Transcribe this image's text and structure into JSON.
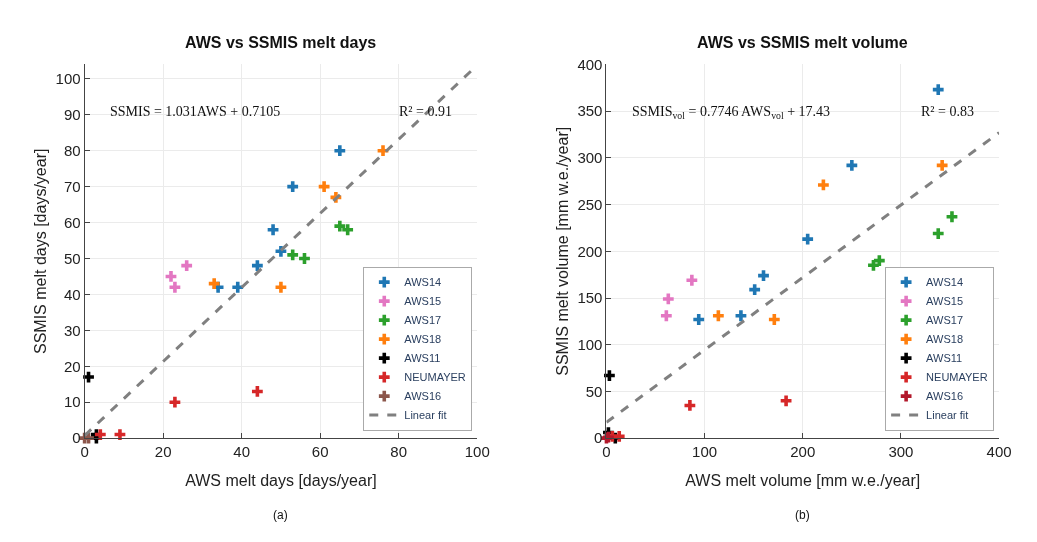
{
  "chart_data": [
    {
      "type": "scatter",
      "title": "AWS vs SSMIS melt days",
      "xlabel": "AWS melt days [days/year]",
      "ylabel": "SSMIS melt days [days/year]",
      "xlim": [
        0,
        100
      ],
      "ylim": [
        0,
        104
      ],
      "xticks": [
        0,
        20,
        40,
        60,
        80,
        100
      ],
      "yticks": [
        0,
        10,
        20,
        30,
        40,
        50,
        60,
        70,
        80,
        90,
        100
      ],
      "grid": true,
      "legend": "bottom right",
      "marker": "cross",
      "annotations": [
        "SSMIS = 1.031AWS + 0.7105",
        "R² = 0.91",
        "(a)"
      ],
      "series": [
        {
          "name": "AWS14",
          "color": "#1f77b4",
          "x": [
            34,
            39,
            44,
            48,
            50,
            53,
            65
          ],
          "values": [
            42,
            42,
            48,
            58,
            52,
            70,
            80
          ]
        },
        {
          "name": "AWS15",
          "color": "#e377c2",
          "x": [
            22,
            23,
            26
          ],
          "values": [
            45,
            42,
            48
          ]
        },
        {
          "name": "AWS17",
          "color": "#2ca02c",
          "x": [
            53,
            56,
            65,
            67
          ],
          "values": [
            51,
            50,
            59,
            58
          ]
        },
        {
          "name": "AWS18",
          "color": "#ff7f0e",
          "x": [
            33,
            50,
            61,
            64,
            76
          ],
          "values": [
            43,
            42,
            70,
            67,
            80
          ]
        },
        {
          "name": "AWS11",
          "color": "#000000",
          "x": [
            1,
            3,
            3
          ],
          "values": [
            17,
            1,
            0
          ]
        },
        {
          "name": "NEUMAYER",
          "color": "#d62728",
          "x": [
            4,
            9,
            23,
            44
          ],
          "values": [
            1,
            1,
            10,
            13
          ]
        },
        {
          "name": "AWS16",
          "color": "#8c564b",
          "x": [
            0,
            1
          ],
          "values": [
            0,
            0
          ]
        },
        {
          "name": "Linear fit",
          "type": "line",
          "color": "#808080",
          "line_style": "dashed",
          "marker": "none",
          "x": [
            0,
            100
          ],
          "values": [
            0.7,
            103.8
          ]
        }
      ]
    },
    {
      "type": "scatter",
      "title": "AWS vs SSMIS melt volume",
      "xlabel": "AWS melt volume [mm w.e./year]",
      "ylabel": "SSMIS melt volume [mm w.e./year]",
      "xlim": [
        0,
        400
      ],
      "ylim": [
        0,
        400
      ],
      "xticks": [
        0,
        100,
        200,
        300,
        400
      ],
      "yticks": [
        0,
        50,
        100,
        150,
        200,
        250,
        300,
        350,
        400
      ],
      "grid": true,
      "legend": "bottom right",
      "marker": "cross",
      "annotations": [
        "SSMIS$_{vol}$ = 0.7746 AWS$_{vol}$ + 17.43",
        "R² = 0.83",
        "(b)"
      ],
      "series": [
        {
          "name": "AWS14",
          "color": "#1f77b4",
          "x": [
            94,
            137,
            151,
            160,
            205,
            250,
            338
          ],
          "values": [
            127,
            131,
            159,
            174,
            213,
            292,
            373
          ]
        },
        {
          "name": "AWS15",
          "color": "#e377c2",
          "x": [
            61,
            63,
            87
          ],
          "values": [
            131,
            149,
            169
          ]
        },
        {
          "name": "AWS17",
          "color": "#2ca02c",
          "x": [
            272,
            278,
            338,
            352
          ],
          "values": [
            185,
            190,
            219,
            237
          ]
        },
        {
          "name": "AWS18",
          "color": "#ff7f0e",
          "x": [
            114,
            171,
            221,
            342
          ],
          "values": [
            131,
            127,
            271,
            292
          ]
        },
        {
          "name": "AWS11",
          "color": "#000000",
          "x": [
            3,
            2,
            9
          ],
          "values": [
            67,
            6,
            0
          ]
        },
        {
          "name": "NEUMAYER",
          "color": "#d62728",
          "x": [
            85,
            183,
            13,
            6
          ],
          "values": [
            35,
            40,
            2,
            2
          ]
        },
        {
          "name": "AWS16",
          "color": "#b2182b",
          "x": [
            0,
            2
          ],
          "values": [
            0,
            1
          ]
        },
        {
          "name": "Linear fit",
          "type": "line",
          "color": "#808080",
          "line_style": "dashed",
          "marker": "none",
          "x": [
            0,
            400
          ],
          "values": [
            17,
            327
          ]
        }
      ]
    }
  ]
}
